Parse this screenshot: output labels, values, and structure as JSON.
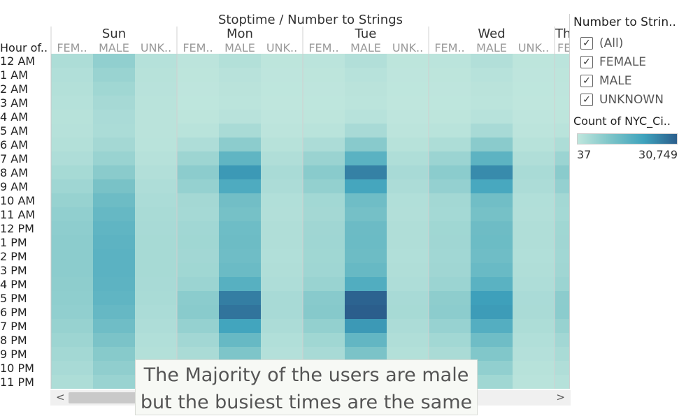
{
  "chart_data": {
    "type": "heatmap",
    "title": "Stoptime / Number to Strings",
    "row_header": "Hour of..",
    "rows": [
      "12 AM",
      "1 AM",
      "2 AM",
      "3 AM",
      "4 AM",
      "5 AM",
      "6 AM",
      "7 AM",
      "8 AM",
      "9 AM",
      "10 AM",
      "11 AM",
      "12 PM",
      "1 PM",
      "2 PM",
      "3 PM",
      "4 PM",
      "5 PM",
      "6 PM",
      "7 PM",
      "8 PM",
      "9 PM",
      "10 PM",
      "11 PM"
    ],
    "columns": [
      {
        "day": "Sun",
        "subs": [
          "FEM..",
          "MALE",
          "UNK.."
        ]
      },
      {
        "day": "Mon",
        "subs": [
          "FEM..",
          "MALE",
          "UNK.."
        ]
      },
      {
        "day": "Tue",
        "subs": [
          "FEM..",
          "MALE",
          "UNK.."
        ]
      },
      {
        "day": "Wed",
        "subs": [
          "FEM..",
          "MALE",
          "UNK.."
        ]
      },
      {
        "day": "Th",
        "subs": [
          "FE"
        ]
      }
    ],
    "values": {
      "Sun": {
        "FEM..": [
          2800,
          2200,
          1800,
          1500,
          1300,
          1400,
          1900,
          2600,
          3800,
          5000,
          6200,
          7000,
          7500,
          7800,
          7900,
          7800,
          7600,
          7400,
          7000,
          6200,
          5200,
          4300,
          3500,
          2800
        ],
        "MALE": [
          7000,
          5800,
          4700,
          3900,
          3200,
          3100,
          4200,
          5800,
          8200,
          10800,
          12800,
          14000,
          15000,
          15500,
          15800,
          15800,
          15500,
          15000,
          14000,
          12500,
          10500,
          8600,
          7200,
          5800
        ],
        "UNK..": [
          1600,
          1300,
          1100,
          900,
          800,
          800,
          1000,
          1400,
          2000,
          2600,
          3100,
          3400,
          3600,
          3700,
          3700,
          3700,
          3600,
          3400,
          3100,
          2700,
          2200,
          1800,
          1500,
          1200
        ]
      },
      "Mon": {
        "FEM..": [
          500,
          300,
          200,
          150,
          300,
          900,
          2600,
          5300,
          7900,
          6400,
          4200,
          4000,
          4600,
          4700,
          4500,
          4700,
          5500,
          8000,
          8300,
          6400,
          4500,
          3300,
          2400,
          1600
        ],
        "MALE": [
          1900,
          1100,
          800,
          600,
          1100,
          3400,
          7900,
          15000,
          22000,
          18000,
          12000,
          11200,
          12600,
          12800,
          12400,
          13200,
          16500,
          26000,
          27500,
          20000,
          13800,
          10000,
          7300,
          4800
        ],
        "UNK..": [
          300,
          200,
          150,
          100,
          200,
          500,
          1300,
          2400,
          3400,
          2900,
          2100,
          2000,
          2300,
          2300,
          2200,
          2300,
          2600,
          3500,
          3600,
          2900,
          2200,
          1700,
          1300,
          900
        ]
      },
      "Tue": {
        "FEM..": [
          600,
          350,
          250,
          180,
          350,
          1000,
          2900,
          5700,
          8300,
          6800,
          4400,
          4200,
          4800,
          4900,
          4700,
          4900,
          5800,
          8500,
          8800,
          6700,
          4700,
          3500,
          2500,
          1700
        ],
        "MALE": [
          2000,
          1200,
          850,
          650,
          1200,
          3600,
          8400,
          16000,
          25500,
          19500,
          12500,
          11500,
          13000,
          13200,
          12800,
          13800,
          17500,
          30000,
          30749,
          22000,
          14500,
          10500,
          7600,
          5000
        ],
        "UNK..": [
          300,
          200,
          150,
          100,
          200,
          500,
          1300,
          2500,
          3500,
          3000,
          2100,
          2000,
          2300,
          2300,
          2200,
          2300,
          2700,
          3600,
          3700,
          3000,
          2300,
          1800,
          1300,
          900
        ]
      },
      "Wed": {
        "FEM..": [
          600,
          350,
          250,
          180,
          350,
          1000,
          2800,
          5500,
          8000,
          6600,
          4300,
          4100,
          4700,
          4800,
          4600,
          4800,
          5600,
          7600,
          7800,
          6100,
          4400,
          3300,
          2400,
          1600
        ],
        "MALE": [
          2000,
          1200,
          850,
          650,
          1200,
          3500,
          8200,
          15500,
          24000,
          19000,
          12200,
          11300,
          12700,
          12900,
          12500,
          13400,
          16000,
          21000,
          21500,
          17000,
          12500,
          9500,
          7000,
          4700
        ],
        "UNK..": [
          300,
          200,
          150,
          100,
          200,
          500,
          1300,
          2400,
          3400,
          2900,
          2100,
          2000,
          2300,
          2300,
          2200,
          2300,
          2600,
          3200,
          3300,
          2800,
          2100,
          1700,
          1300,
          900
        ]
      },
      "Th": {
        "FE": [
          600,
          350,
          250,
          180,
          350,
          1000,
          2800,
          5600,
          8100,
          6600,
          4300,
          4100,
          4700,
          4800,
          4600,
          4800,
          5600,
          7800,
          8000,
          6200,
          4500,
          3400,
          2400,
          1600
        ]
      }
    },
    "color_range": [
      37,
      30749
    ],
    "colors": [
      "#bfe6dd",
      "#7cc4c8",
      "#3fa3bd",
      "#2b5e8c"
    ]
  },
  "legend": {
    "filter_title": "Number to Strin..",
    "items": [
      {
        "label": "(All)",
        "checked": true
      },
      {
        "label": "FEMALE",
        "checked": true
      },
      {
        "label": "MALE",
        "checked": true
      },
      {
        "label": "UNKNOWN",
        "checked": true
      }
    ],
    "color_title": "Count of NYC_Ci..",
    "min_label": "37",
    "max_label": "30,749"
  },
  "annotation": {
    "line1": "The Majority of the users are male",
    "line2": "but the busiest times are the same"
  },
  "scroll": {
    "left": "<",
    "right": ">"
  }
}
